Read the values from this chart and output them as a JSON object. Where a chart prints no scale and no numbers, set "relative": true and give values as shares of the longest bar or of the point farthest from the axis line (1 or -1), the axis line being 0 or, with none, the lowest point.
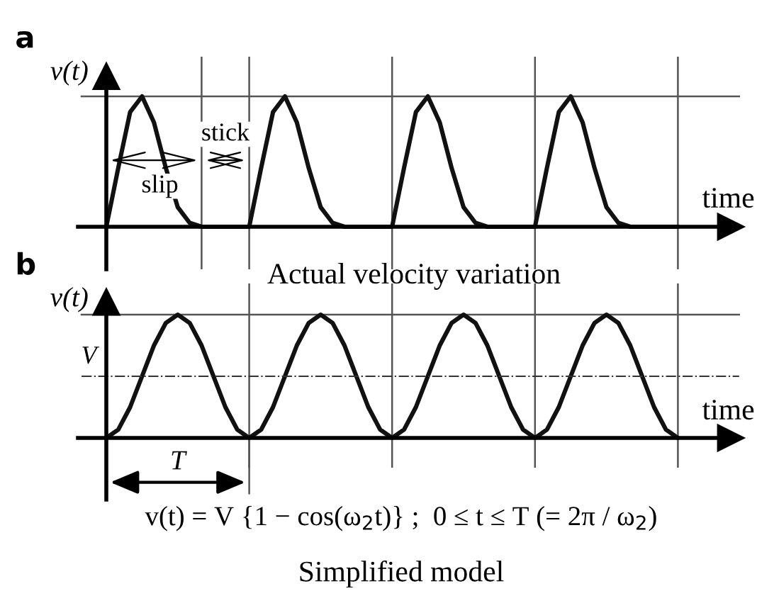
{
  "chart_data": [
    {
      "type": "line",
      "title": "a",
      "xlabel": "time",
      "ylabel": "v(t)",
      "relative": true,
      "categories": [
        null,
        null,
        null,
        null,
        null,
        null,
        null,
        null,
        null,
        null,
        null,
        null,
        null,
        null,
        null,
        null,
        null,
        null,
        null,
        null,
        null,
        null,
        null,
        null,
        null,
        null,
        null,
        null,
        null,
        null,
        null,
        null,
        null,
        null,
        null,
        null,
        null,
        null,
        null,
        null,
        null,
        null,
        null,
        null,
        null,
        null,
        null,
        null,
        null
      ],
      "series": [
        {
          "color": "#111111",
          "values": [
            0,
            0.45,
            0.88,
            1.0,
            0.8,
            0.45,
            0.15,
            0.03,
            0,
            0,
            0,
            0,
            0,
            0.45,
            0.88,
            1.0,
            0.8,
            0.45,
            0.15,
            0.03,
            0,
            0,
            0,
            0,
            0,
            0.45,
            0.88,
            1.0,
            0.8,
            0.45,
            0.15,
            0.03,
            0,
            0,
            0,
            0,
            0,
            0.45,
            0.88,
            1.0,
            0.8,
            0.45,
            0.15,
            0.03,
            0,
            0,
            0,
            0,
            0
          ]
        }
      ],
      "grid": "x",
      "annotations": [
        "slip",
        "stick",
        "Actual velocity variation"
      ]
    },
    {
      "type": "line",
      "title": "b",
      "xlabel": "time",
      "ylabel": "v(t)",
      "relative": true,
      "categories": [
        null,
        null,
        null,
        null,
        null,
        null,
        null,
        null,
        null,
        null,
        null,
        null,
        null,
        null,
        null,
        null,
        null,
        null,
        null,
        null,
        null,
        null,
        null,
        null,
        null,
        null,
        null,
        null,
        null,
        null,
        null,
        null,
        null,
        null,
        null,
        null,
        null,
        null,
        null,
        null,
        null,
        null,
        null,
        null,
        null,
        null,
        null,
        null,
        null
      ],
      "series": [
        {
          "color": "#111111",
          "values": [
            0,
            0.067,
            0.25,
            0.5,
            0.75,
            0.933,
            1,
            0.933,
            0.75,
            0.5,
            0.25,
            0.067,
            0,
            0.067,
            0.25,
            0.5,
            0.75,
            0.933,
            1,
            0.933,
            0.75,
            0.5,
            0.25,
            0.067,
            0,
            0.067,
            0.25,
            0.5,
            0.75,
            0.933,
            1,
            0.933,
            0.75,
            0.5,
            0.25,
            0.067,
            0,
            0.067,
            0.25,
            0.5,
            0.75,
            0.933,
            1,
            0.933,
            0.75,
            0.5,
            0.25,
            0.067,
            0
          ]
        }
      ],
      "grid": "x",
      "ref_lines": [
        {
          "axis": "y",
          "value": 0.5,
          "label": "V",
          "color": "#333333",
          "line_style": "dashdot"
        }
      ],
      "annotations": [
        "T",
        "v(t) = V {1 − cos(ω$_{2}$t)} ;  0 ≤ t ≤ T (= 2π / ω$_{2}$)",
        "Simplified model"
      ]
    }
  ]
}
